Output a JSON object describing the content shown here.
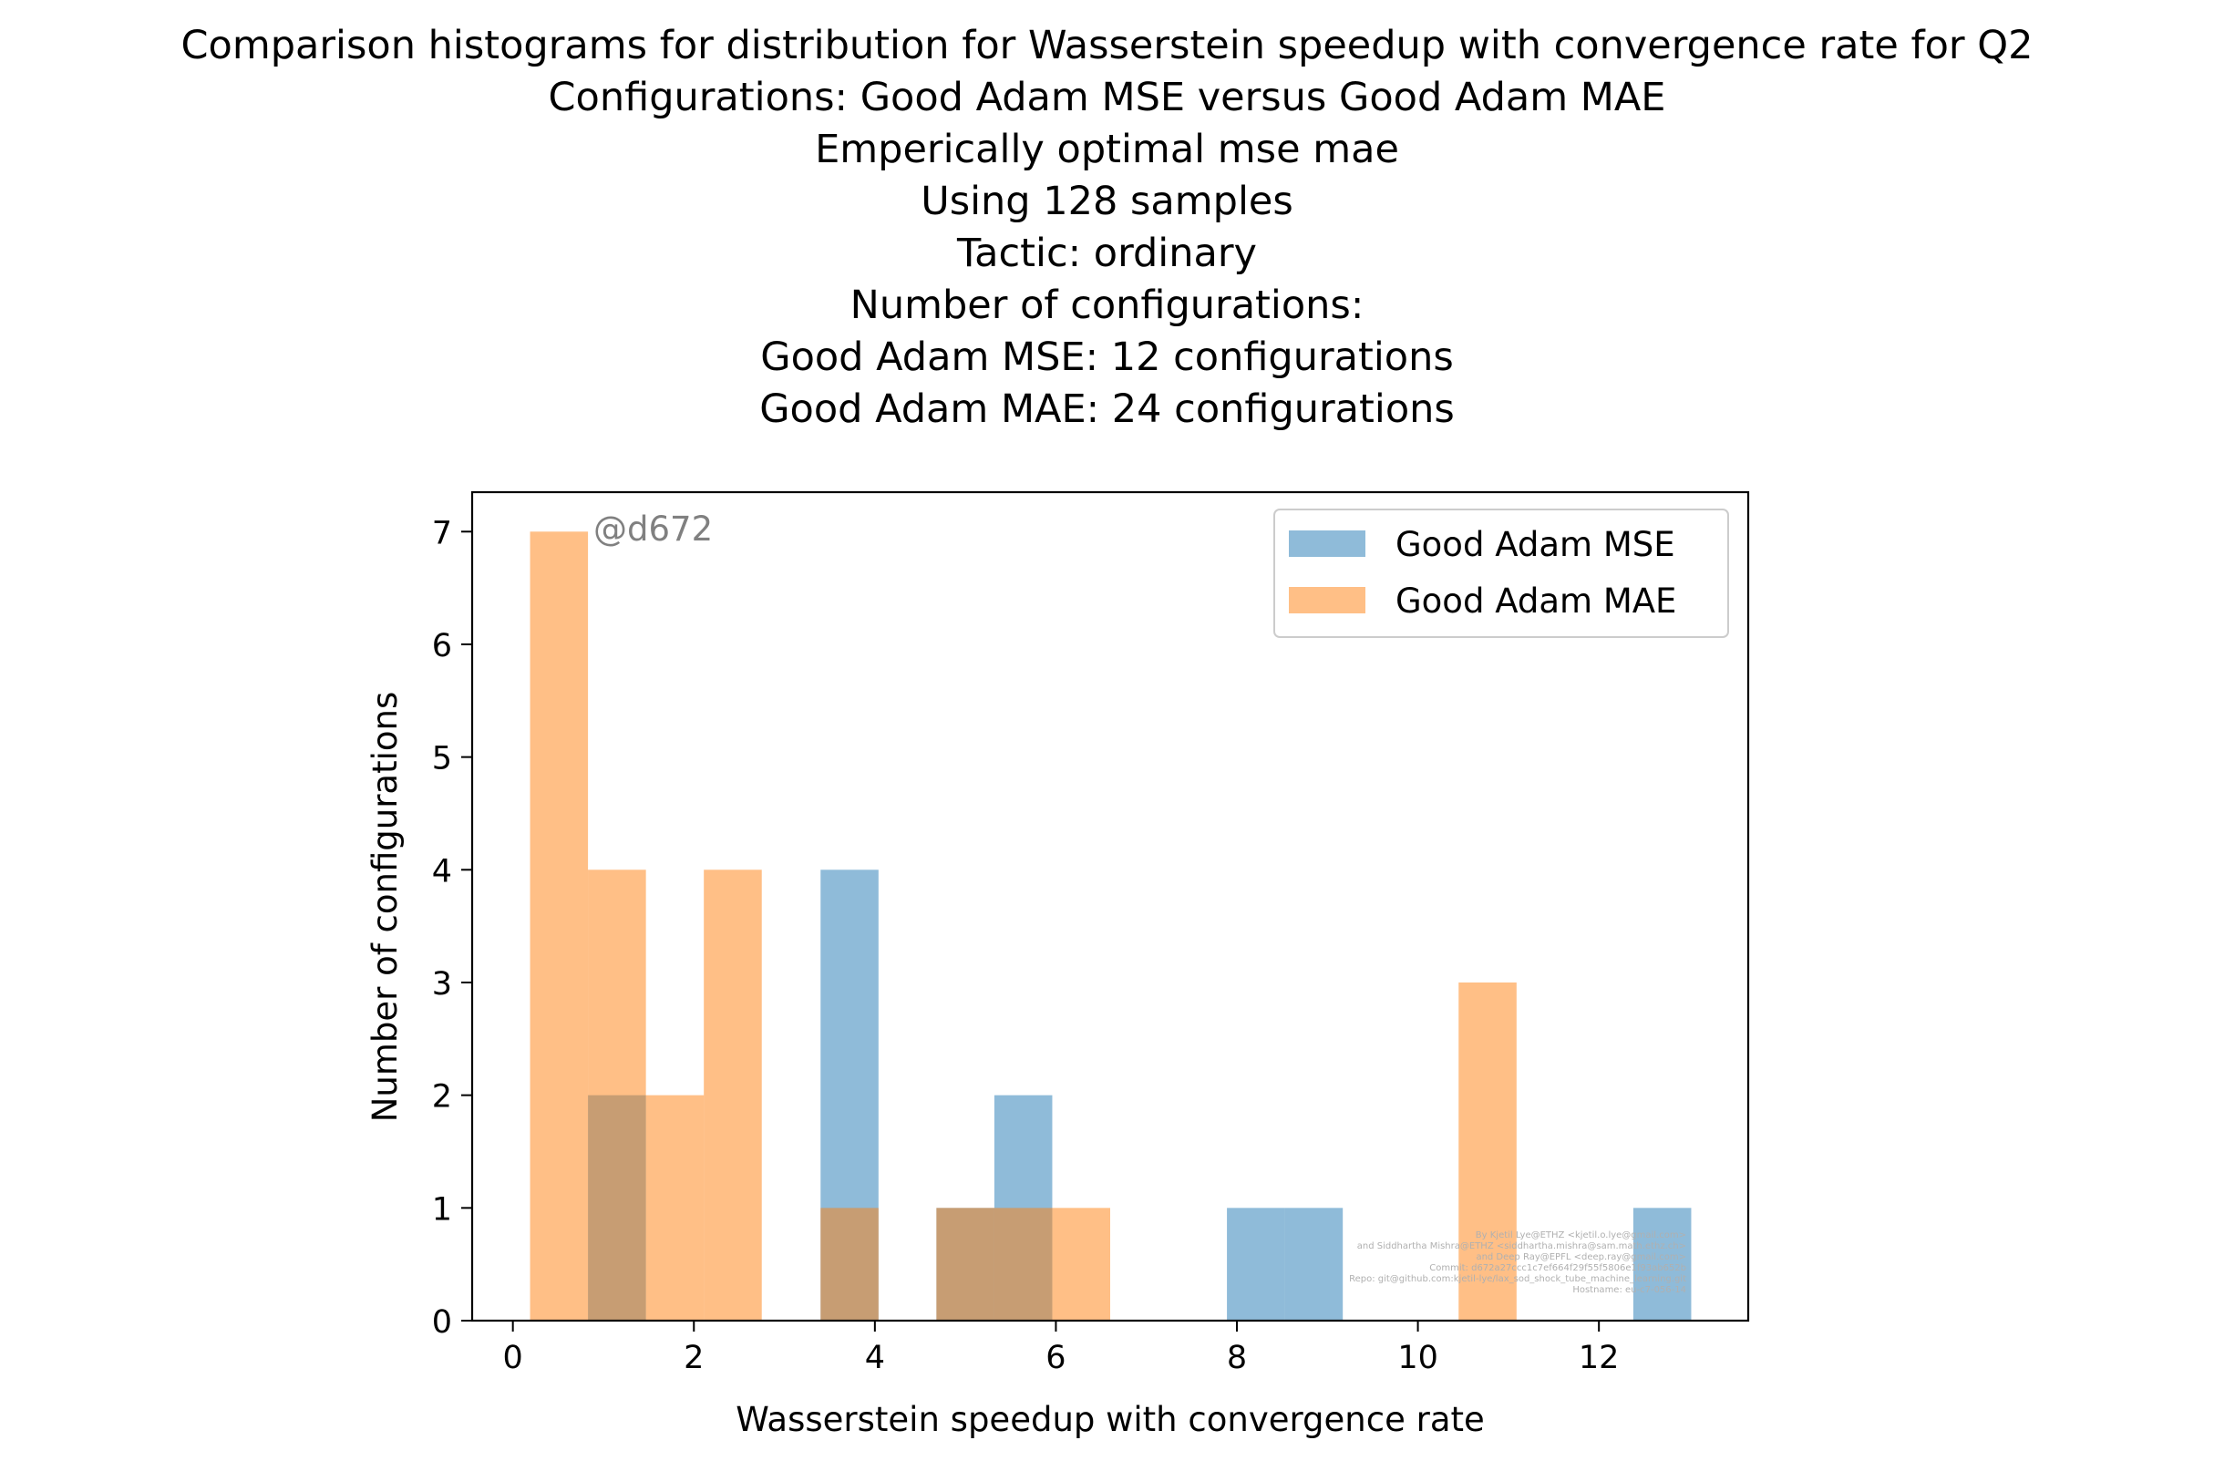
{
  "title_lines": [
    "Comparison histograms for distribution for Wasserstein speedup with convergence rate for Q2",
    "Configurations: Good Adam MSE versus Good Adam MAE",
    "Emperically optimal mse mae",
    "Using 128 samples",
    "Tactic: ordinary",
    "Number of configurations:",
    "Good Adam MSE: 12 configurations",
    "Good Adam MAE: 24 configurations"
  ],
  "watermark": "@d672",
  "credits": [
    "By Kjetil Lye@ETHZ <kjetil.o.lye@gmail.com>",
    "and Siddhartha Mishra@ETHZ <siddhartha.mishra@sam.math.ethz.ch>",
    "and Deep Ray@EPFL <deep.ray@gmail.com>",
    "Commit: d672a27ccc1c7ef664f29f55f5806e1f93ab652b",
    "Repo: git@github.com:kjetil-lye/lax_sod_shock_tube_machine_learning.git",
    "Hostname: eu-c7-056-14"
  ],
  "chart_data": {
    "type": "bar",
    "title": "Comparison histograms for distribution for Wasserstein speedup with convergence rate for Q2",
    "xlabel": "Wasserstein speedup with convergence rate",
    "ylabel": "Number of configurations",
    "xlim": [
      -0.45,
      13.65
    ],
    "ylim": [
      0,
      7.35
    ],
    "xticks": [
      0,
      2,
      4,
      6,
      8,
      10,
      12
    ],
    "yticks": [
      0,
      1,
      2,
      3,
      4,
      5,
      6,
      7
    ],
    "legend_position": "upper right",
    "grid": false,
    "series": [
      {
        "name": "Good Adam MSE",
        "color": "#1f77b4",
        "alpha": 0.5,
        "bins": [
          {
            "x0": 0.83,
            "x1": 1.47,
            "count": 2
          },
          {
            "x0": 3.4,
            "x1": 4.04,
            "count": 4
          },
          {
            "x0": 4.68,
            "x1": 5.32,
            "count": 1
          },
          {
            "x0": 5.32,
            "x1": 5.96,
            "count": 2
          },
          {
            "x0": 7.89,
            "x1": 8.53,
            "count": 1
          },
          {
            "x0": 8.53,
            "x1": 9.17,
            "count": 1
          },
          {
            "x0": 12.38,
            "x1": 13.02,
            "count": 1
          }
        ]
      },
      {
        "name": "Good Adam MAE",
        "color": "#ff7f0e",
        "alpha": 0.5,
        "bins": [
          {
            "x0": 0.19,
            "x1": 0.83,
            "count": 7
          },
          {
            "x0": 0.83,
            "x1": 1.47,
            "count": 4
          },
          {
            "x0": 1.47,
            "x1": 2.11,
            "count": 2
          },
          {
            "x0": 2.11,
            "x1": 2.75,
            "count": 4
          },
          {
            "x0": 3.4,
            "x1": 4.04,
            "count": 1
          },
          {
            "x0": 4.68,
            "x1": 5.32,
            "count": 1
          },
          {
            "x0": 5.32,
            "x1": 5.96,
            "count": 1
          },
          {
            "x0": 5.96,
            "x1": 6.6,
            "count": 1
          },
          {
            "x0": 10.45,
            "x1": 11.09,
            "count": 3
          }
        ]
      }
    ]
  }
}
